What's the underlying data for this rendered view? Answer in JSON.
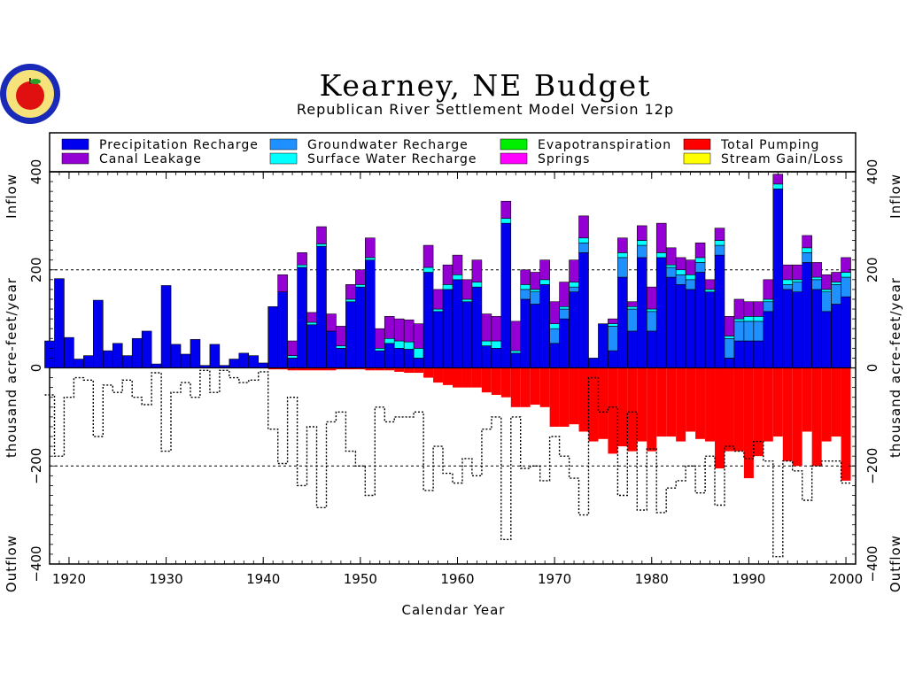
{
  "logo": {
    "name": "apple-seal-logo"
  },
  "chart_data": {
    "type": "bar",
    "title": "Kearney, NE Budget",
    "subtitle": "Republican River Settlement Model Version 12p",
    "xlabel": "Calendar Year",
    "ylabel": "thousand acre-feet/year",
    "inflow_label": "Inflow",
    "outflow_label": "Outflow",
    "xlim": [
      1918,
      2001
    ],
    "ylim": [
      -400,
      400
    ],
    "x_ticks": [
      1920,
      1930,
      1940,
      1950,
      1960,
      1970,
      1980,
      1990,
      2000
    ],
    "x_tick_labels": [
      "1920",
      "1930",
      "1940",
      "1950",
      "1960",
      "1970",
      "1980",
      "1990",
      "2000"
    ],
    "y_ticks": [
      -400,
      -200,
      0,
      200,
      400
    ],
    "y_tick_labels": [
      "−400",
      "−200",
      "0",
      "200",
      "400"
    ],
    "gridlines_y": [
      -200,
      200,
      400
    ],
    "legend": [
      {
        "name": "Precipitation Recharge",
        "color": "#0000ee"
      },
      {
        "name": "Canal Leakage",
        "color": "#9400d3"
      },
      {
        "name": "Groundwater Recharge",
        "color": "#1e90ff"
      },
      {
        "name": "Surface Water Recharge",
        "color": "#00ffff"
      },
      {
        "name": "Evapotranspiration",
        "color": "#00ee00"
      },
      {
        "name": "Springs",
        "color": "#ff00ff"
      },
      {
        "name": "Total Pumping",
        "color": "#ff0000"
      },
      {
        "name": "Stream Gain/Loss",
        "color": "#ffff00"
      }
    ],
    "years": [
      1918,
      1919,
      1920,
      1921,
      1922,
      1923,
      1924,
      1925,
      1926,
      1927,
      1928,
      1929,
      1930,
      1931,
      1932,
      1933,
      1934,
      1935,
      1936,
      1937,
      1938,
      1939,
      1940,
      1941,
      1942,
      1943,
      1944,
      1945,
      1946,
      1947,
      1948,
      1949,
      1950,
      1951,
      1952,
      1953,
      1954,
      1955,
      1956,
      1957,
      1958,
      1959,
      1960,
      1961,
      1962,
      1963,
      1964,
      1965,
      1966,
      1967,
      1968,
      1969,
      1970,
      1971,
      1972,
      1973,
      1974,
      1975,
      1976,
      1977,
      1978,
      1979,
      1980,
      1981,
      1982,
      1983,
      1984,
      1985,
      1986,
      1987,
      1988,
      1989,
      1990,
      1991,
      1992,
      1993,
      1994,
      1995,
      1996,
      1997,
      1998,
      1999,
      2000
    ],
    "series": [
      {
        "name": "Precipitation Recharge",
        "values": [
          55,
          182,
          62,
          18,
          25,
          138,
          35,
          50,
          25,
          60,
          75,
          8,
          168,
          48,
          28,
          58,
          5,
          48,
          5,
          18,
          30,
          25,
          10,
          125,
          155,
          20,
          205,
          88,
          248,
          75,
          40,
          135,
          165,
          220,
          35,
          50,
          40,
          38,
          20,
          195,
          115,
          160,
          180,
          135,
          165,
          45,
          40,
          295,
          30,
          140,
          130,
          170,
          50,
          100,
          155,
          235,
          20,
          90,
          35,
          185,
          75,
          225,
          75,
          225,
          185,
          170,
          160,
          195,
          155,
          230,
          20,
          55,
          55,
          55,
          115,
          365,
          160,
          155,
          215,
          160,
          115,
          130,
          145
        ]
      },
      {
        "name": "Groundwater Recharge",
        "values": [
          0,
          0,
          0,
          0,
          0,
          0,
          0,
          0,
          0,
          0,
          0,
          0,
          0,
          0,
          0,
          0,
          0,
          0,
          0,
          0,
          0,
          0,
          0,
          0,
          0,
          0,
          0,
          0,
          0,
          0,
          0,
          0,
          0,
          0,
          0,
          0,
          0,
          0,
          0,
          0,
          0,
          0,
          0,
          0,
          0,
          0,
          0,
          0,
          0,
          20,
          25,
          0,
          30,
          20,
          10,
          20,
          0,
          0,
          50,
          40,
          45,
          25,
          40,
          0,
          20,
          20,
          20,
          20,
          0,
          20,
          40,
          40,
          40,
          40,
          20,
          0,
          10,
          20,
          20,
          20,
          40,
          40,
          40
        ]
      },
      {
        "name": "Surface Water Recharge",
        "values": [
          0,
          0,
          0,
          0,
          0,
          0,
          0,
          0,
          0,
          0,
          0,
          0,
          0,
          0,
          0,
          0,
          0,
          0,
          0,
          0,
          0,
          0,
          0,
          0,
          0,
          5,
          5,
          5,
          5,
          0,
          5,
          5,
          5,
          5,
          5,
          10,
          15,
          15,
          20,
          10,
          5,
          10,
          10,
          5,
          10,
          10,
          15,
          10,
          5,
          10,
          5,
          10,
          10,
          5,
          10,
          10,
          0,
          0,
          5,
          10,
          5,
          10,
          5,
          10,
          5,
          10,
          10,
          10,
          5,
          10,
          5,
          5,
          10,
          10,
          5,
          10,
          10,
          5,
          10,
          5,
          5,
          5,
          10
        ]
      },
      {
        "name": "Canal Leakage",
        "values": [
          0,
          0,
          0,
          0,
          0,
          0,
          0,
          0,
          0,
          0,
          0,
          0,
          0,
          0,
          0,
          0,
          0,
          0,
          0,
          0,
          0,
          0,
          0,
          0,
          35,
          30,
          25,
          20,
          35,
          35,
          40,
          30,
          30,
          40,
          40,
          45,
          45,
          45,
          50,
          45,
          40,
          40,
          40,
          40,
          45,
          55,
          50,
          35,
          60,
          30,
          35,
          40,
          45,
          50,
          45,
          45,
          0,
          0,
          10,
          30,
          10,
          30,
          45,
          60,
          35,
          25,
          30,
          30,
          20,
          25,
          40,
          40,
          30,
          30,
          40,
          20,
          30,
          30,
          25,
          30,
          30,
          20,
          30
        ]
      },
      {
        "name": "Total Pumping",
        "values": [
          0,
          0,
          0,
          0,
          0,
          0,
          0,
          0,
          0,
          0,
          0,
          0,
          0,
          0,
          0,
          0,
          0,
          0,
          0,
          0,
          0,
          0,
          0,
          -3,
          -3,
          -5,
          -5,
          -5,
          -5,
          -5,
          -3,
          -3,
          -3,
          -5,
          -5,
          -5,
          -8,
          -10,
          -10,
          -20,
          -30,
          -35,
          -40,
          -40,
          -40,
          -50,
          -55,
          -60,
          -80,
          -80,
          -75,
          -80,
          -120,
          -120,
          -115,
          -130,
          -150,
          -145,
          -175,
          -160,
          -170,
          -150,
          -170,
          -140,
          -140,
          -150,
          -130,
          -145,
          -150,
          -205,
          -170,
          -170,
          -225,
          -180,
          -150,
          -140,
          -190,
          -200,
          -130,
          -200,
          -150,
          -140,
          -230
        ]
      },
      {
        "name": "Stream Gain/Loss",
        "values": [
          -55,
          -180,
          -60,
          -20,
          -25,
          -140,
          -35,
          -50,
          -25,
          -60,
          -75,
          -10,
          -170,
          -50,
          -30,
          -60,
          -5,
          -50,
          -5,
          -20,
          -30,
          -25,
          -8,
          -125,
          -195,
          -60,
          -240,
          -120,
          -285,
          -110,
          -90,
          -170,
          -200,
          -260,
          -80,
          -110,
          -100,
          -100,
          -90,
          -250,
          -160,
          -215,
          -235,
          -185,
          -220,
          -125,
          -100,
          -350,
          -100,
          -205,
          -200,
          -230,
          -140,
          -180,
          -225,
          -300,
          -20,
          -90,
          -80,
          -260,
          -90,
          -290,
          -165,
          -295,
          -245,
          -230,
          -200,
          -255,
          -180,
          -280,
          -160,
          -170,
          -185,
          -150,
          -190,
          -385,
          -190,
          -210,
          -270,
          -200,
          -190,
          -190,
          -235
        ]
      }
    ],
    "notes_grid": "dashed horizontal lines at 400, 200, -200"
  }
}
